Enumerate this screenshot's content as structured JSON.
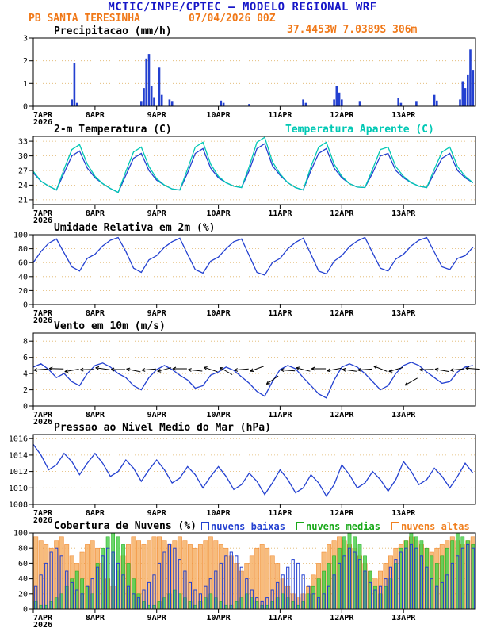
{
  "header": {
    "title": "MCTIC/INPE/CPTEC — MODELO REGIONAL WRF",
    "station": "PB SANTA TERESINHA",
    "run": "07/04/2026 00Z",
    "location": "37.4453W 7.0389S 306m"
  },
  "x_axis": {
    "tick_labels": [
      "7APR",
      "8APR",
      "9APR",
      "10APR",
      "11APR",
      "12APR",
      "13APR"
    ],
    "year_label": "2026",
    "tick_hours": [
      0,
      24,
      48,
      72,
      96,
      120,
      144
    ],
    "total_hours": 172
  },
  "colors": {
    "title_blue": "#1616c8",
    "orange": "#f07818",
    "line_blue": "#2340d0",
    "cyan": "#00c8b4",
    "grid": "#e0b468",
    "black": "#000000"
  },
  "chart_data": [
    {
      "id": "precip",
      "type": "bar",
      "title": "Precipitacao (mm/h)",
      "ylabel": "mm/h",
      "ylim": [
        0,
        3
      ],
      "yticks": [
        0,
        1,
        2,
        3
      ],
      "x_unit": "hours from 7APR 00Z",
      "points": [
        [
          15,
          0.3
        ],
        [
          16,
          1.9
        ],
        [
          17,
          0.15
        ],
        [
          42,
          0.2
        ],
        [
          43,
          0.8
        ],
        [
          44,
          2.1
        ],
        [
          45,
          2.3
        ],
        [
          46,
          0.9
        ],
        [
          47,
          0.4
        ],
        [
          49,
          1.7
        ],
        [
          50,
          0.5
        ],
        [
          53,
          0.3
        ],
        [
          54,
          0.2
        ],
        [
          73,
          0.25
        ],
        [
          74,
          0.15
        ],
        [
          84,
          0.1
        ],
        [
          105,
          0.3
        ],
        [
          106,
          0.15
        ],
        [
          117,
          0.3
        ],
        [
          118,
          0.9
        ],
        [
          119,
          0.6
        ],
        [
          120,
          0.3
        ],
        [
          127,
          0.2
        ],
        [
          142,
          0.35
        ],
        [
          143,
          0.15
        ],
        [
          149,
          0.2
        ],
        [
          156,
          0.5
        ],
        [
          157,
          0.25
        ],
        [
          166,
          0.3
        ],
        [
          167,
          1.1
        ],
        [
          168,
          0.8
        ],
        [
          169,
          1.4
        ],
        [
          170,
          2.5
        ],
        [
          171,
          1.6
        ]
      ]
    },
    {
      "id": "temp2m",
      "type": "line",
      "title": "2-m Temperatura (C)",
      "ylabel": "C",
      "ylim": [
        20,
        34
      ],
      "yticks": [
        21,
        24,
        27,
        30,
        33
      ],
      "step_hours": 3,
      "series": [
        {
          "name": "2-m Temperatura (C)",
          "color": "#2340d0",
          "values": [
            26.5,
            24.8,
            23.8,
            23,
            26.5,
            30,
            31,
            27.5,
            25.5,
            24.3,
            23.3,
            22.5,
            26,
            29.5,
            30.5,
            27,
            25,
            24,
            23.2,
            23,
            26.5,
            30.5,
            31.5,
            27.5,
            25.5,
            24.5,
            23.8,
            23.5,
            27,
            31.5,
            32.5,
            28,
            26,
            24.5,
            23.5,
            23,
            27,
            30.5,
            31.5,
            27.5,
            25.5,
            24.3,
            23.6,
            23.5,
            26.5,
            30,
            30.5,
            27,
            25.5,
            24.5,
            23.8,
            23.5,
            26.5,
            29.5,
            30.5,
            27,
            25.5,
            24.5
          ]
        },
        {
          "name": "Temperatura Aparente (C)",
          "color": "#00c8b4",
          "values": [
            26.8,
            24.8,
            23.8,
            23,
            27.3,
            31.3,
            32.3,
            28.3,
            25.8,
            24.3,
            23.3,
            22.5,
            26.8,
            30.8,
            31.8,
            27.8,
            25.3,
            24,
            23.2,
            23,
            27.3,
            31.8,
            32.8,
            28.3,
            25.8,
            24.5,
            23.8,
            23.5,
            27.8,
            32.8,
            33.8,
            28.8,
            26.3,
            24.5,
            23.5,
            23,
            27.8,
            31.8,
            32.8,
            28.3,
            25.8,
            24.3,
            23.6,
            23.5,
            27.3,
            31.3,
            31.8,
            27.8,
            25.8,
            24.5,
            23.8,
            23.5,
            27.3,
            30.8,
            31.8,
            27.8,
            25.8,
            24.5
          ]
        }
      ]
    },
    {
      "id": "rh2m",
      "type": "line",
      "title": "Umidade Relativa em 2m (%)",
      "ylabel": "%",
      "ylim": [
        0,
        100
      ],
      "yticks": [
        0,
        20,
        40,
        60,
        80,
        100
      ],
      "step_hours": 3,
      "values": [
        60,
        76,
        88,
        94,
        74,
        54,
        48,
        66,
        72,
        84,
        92,
        96,
        76,
        52,
        46,
        64,
        70,
        82,
        90,
        95,
        72,
        50,
        45,
        62,
        68,
        80,
        90,
        94,
        70,
        46,
        42,
        60,
        66,
        80,
        89,
        95,
        72,
        48,
        44,
        62,
        70,
        83,
        91,
        96,
        74,
        52,
        48,
        65,
        72,
        84,
        92,
        96,
        75,
        54,
        50,
        66,
        70,
        82
      ]
    },
    {
      "id": "wind10m",
      "type": "line",
      "title": "Vento em 10m (m/s)",
      "ylabel": "m/s",
      "ylim": [
        0,
        9
      ],
      "yticks": [
        0,
        2,
        4,
        6,
        8
      ],
      "step_hours": 3,
      "values": [
        4.8,
        5.2,
        4.5,
        3.5,
        4,
        3,
        2.5,
        4,
        5,
        5.3,
        4.8,
        4,
        3.5,
        2.5,
        2,
        3.5,
        4.5,
        5,
        4.5,
        3.8,
        3.2,
        2.2,
        2.5,
        3.8,
        4.2,
        4.8,
        4.4,
        3.6,
        2.8,
        1.8,
        1.2,
        3,
        4.5,
        5,
        4.6,
        3.5,
        2.5,
        1.5,
        1,
        3.2,
        4.8,
        5.2,
        4.8,
        4,
        3,
        2,
        2.5,
        4,
        5,
        5.4,
        5,
        4.2,
        3.5,
        2.8,
        3,
        4.2,
        4.8,
        5
      ],
      "barb_step_hours": 6,
      "barbs": [
        [
          185,
          4.5
        ],
        [
          178,
          4.6
        ],
        [
          190,
          4.4
        ],
        [
          182,
          4.5
        ],
        [
          172,
          4.6
        ],
        [
          180,
          4.5
        ],
        [
          168,
          4.4
        ],
        [
          185,
          4.5
        ],
        [
          195,
          4.5
        ],
        [
          180,
          4.6
        ],
        [
          174,
          4.4
        ],
        [
          162,
          4.5
        ],
        [
          150,
          4.3
        ],
        [
          185,
          4.5
        ],
        [
          200,
          4.6
        ],
        [
          215,
          3.2
        ],
        [
          176,
          4.4
        ],
        [
          166,
          4.5
        ],
        [
          180,
          4.6
        ],
        [
          190,
          4.5
        ],
        [
          172,
          4.4
        ],
        [
          184,
          4.5
        ],
        [
          158,
          4.6
        ],
        [
          196,
          4.5
        ],
        [
          210,
          3
        ],
        [
          182,
          4.5
        ],
        [
          170,
          4.4
        ],
        [
          186,
          4.5
        ],
        [
          176,
          4.6
        ]
      ]
    },
    {
      "id": "slp",
      "type": "line",
      "title": "Pressao ao Nivel Medio do Mar (hPa)",
      "ylabel": "hPa",
      "ylim": [
        1008,
        1016.5
      ],
      "yticks": [
        1008,
        1010,
        1012,
        1014,
        1016
      ],
      "step_hours": 3,
      "values": [
        1015.3,
        1014,
        1012.2,
        1012.8,
        1014.2,
        1013.2,
        1011.6,
        1013,
        1014.2,
        1013,
        1011.4,
        1012,
        1013.4,
        1012.4,
        1010.8,
        1012.2,
        1013.4,
        1012.2,
        1010.6,
        1011.2,
        1012.6,
        1011.6,
        1010,
        1011.4,
        1012.6,
        1011.4,
        1009.8,
        1010.4,
        1011.8,
        1010.8,
        1009.2,
        1010.6,
        1012.2,
        1011,
        1009.4,
        1010,
        1011.6,
        1010.6,
        1009,
        1010.4,
        1012.8,
        1011.6,
        1010,
        1010.6,
        1012,
        1011,
        1009.6,
        1011,
        1013.2,
        1012,
        1010.4,
        1011,
        1012.4,
        1011.4,
        1010,
        1011.4,
        1013,
        1011.8
      ]
    },
    {
      "id": "clouds",
      "type": "bar",
      "title": "Cobertura de Nuvens (%)",
      "ylabel": "%",
      "ylim": [
        0,
        100
      ],
      "yticks": [
        0,
        20,
        40,
        60,
        80,
        100
      ],
      "step_hours": 2,
      "series": [
        {
          "name": "nuvens baixas",
          "color": "#2340d0",
          "style": "outline",
          "fill": "none",
          "values": [
            30,
            45,
            60,
            75,
            80,
            70,
            50,
            35,
            25,
            20,
            30,
            40,
            55,
            70,
            80,
            75,
            60,
            45,
            30,
            20,
            15,
            25,
            35,
            45,
            60,
            75,
            85,
            80,
            65,
            50,
            35,
            25,
            20,
            30,
            40,
            50,
            60,
            70,
            75,
            70,
            55,
            40,
            25,
            15,
            10,
            15,
            25,
            35,
            45,
            55,
            65,
            60,
            45,
            30,
            20,
            15,
            20,
            30,
            45,
            60,
            70,
            80,
            75,
            65,
            50,
            35,
            25,
            30,
            40,
            55,
            65,
            75,
            80,
            85,
            80,
            70,
            55,
            40,
            30,
            35,
            45,
            60,
            70,
            80,
            85,
            80
          ]
        },
        {
          "name": "nuvens medias",
          "color": "#18a818",
          "style": "fill",
          "fill": "#50d050",
          "values": [
            10,
            5,
            5,
            10,
            15,
            20,
            30,
            40,
            50,
            40,
            30,
            20,
            60,
            80,
            95,
            100,
            95,
            85,
            60,
            40,
            20,
            10,
            5,
            5,
            10,
            15,
            20,
            25,
            20,
            15,
            10,
            5,
            10,
            15,
            20,
            15,
            10,
            5,
            5,
            10,
            15,
            20,
            15,
            10,
            5,
            5,
            10,
            15,
            20,
            15,
            10,
            5,
            10,
            20,
            30,
            40,
            50,
            60,
            70,
            80,
            95,
            100,
            95,
            85,
            70,
            50,
            30,
            20,
            30,
            40,
            60,
            80,
            90,
            100,
            95,
            90,
            80,
            70,
            60,
            70,
            80,
            90,
            100,
            95,
            90,
            85
          ]
        },
        {
          "name": "nuvens altas",
          "color": "#f08020",
          "style": "fill",
          "fill": "#f6b066",
          "values": [
            95,
            90,
            85,
            80,
            90,
            95,
            85,
            70,
            60,
            75,
            85,
            90,
            80,
            60,
            40,
            30,
            50,
            70,
            85,
            95,
            90,
            85,
            90,
            95,
            95,
            90,
            85,
            90,
            95,
            90,
            85,
            80,
            85,
            90,
            95,
            90,
            85,
            80,
            70,
            60,
            50,
            60,
            70,
            80,
            85,
            80,
            70,
            60,
            40,
            30,
            20,
            15,
            20,
            30,
            45,
            60,
            75,
            85,
            90,
            95,
            90,
            85,
            80,
            70,
            60,
            50,
            40,
            50,
            60,
            70,
            80,
            85,
            90,
            95,
            90,
            85,
            80,
            75,
            80,
            85,
            90,
            95,
            90,
            85,
            90,
            95
          ]
        }
      ]
    }
  ]
}
